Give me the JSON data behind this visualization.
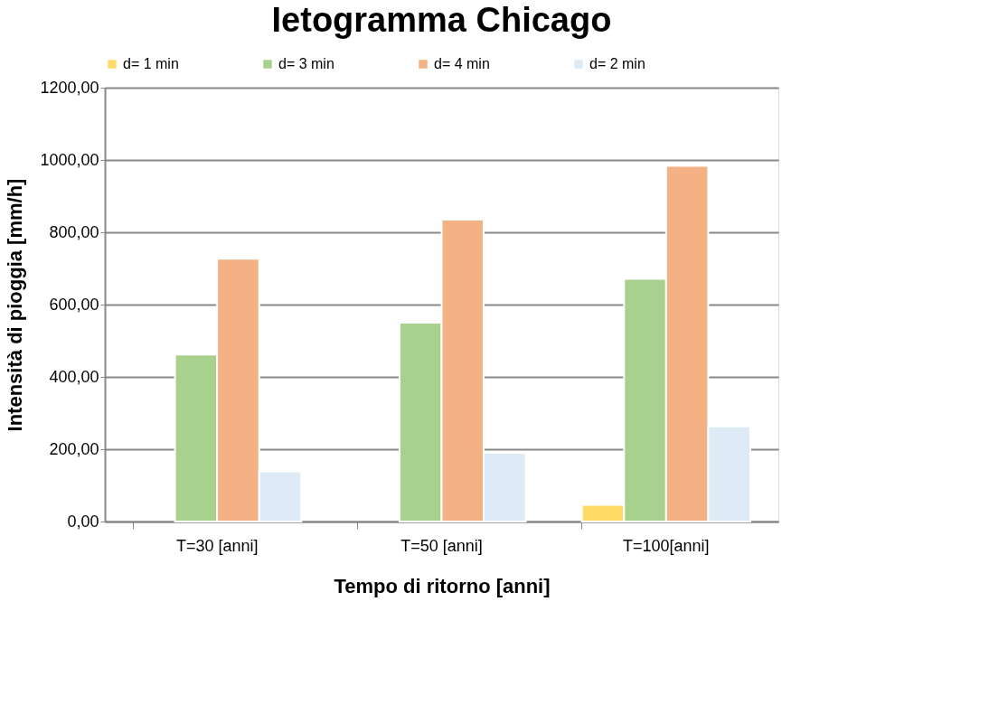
{
  "chart_data": {
    "type": "bar",
    "title": "Ietogramma Chicago",
    "xlabel": "Tempo di ritorno [anni]",
    "ylabel": "Intensità di pioggia [mm/h]",
    "categories": [
      "T=30 [anni]",
      "T=50 [anni]",
      "T=100[anni]"
    ],
    "series": [
      {
        "name": "d= 1 min",
        "color": "#ffd966",
        "values": [
          null,
          null,
          46
        ]
      },
      {
        "name": "d= 3 min",
        "color": "#a9d18e",
        "values": [
          462,
          550,
          671
        ]
      },
      {
        "name": "d= 4 min",
        "color": "#f4b183",
        "values": [
          727,
          835,
          984
        ]
      },
      {
        "name": "d= 2 min",
        "color": "#deebf7",
        "values": [
          139,
          190,
          263
        ]
      }
    ],
    "ylim": [
      0,
      1200
    ],
    "yticks": [
      {
        "value": 0,
        "label": "0,00"
      },
      {
        "value": 200,
        "label": "200,00"
      },
      {
        "value": 400,
        "label": "400,00"
      },
      {
        "value": 600,
        "label": "600,00"
      },
      {
        "value": 800,
        "label": "800,00"
      },
      {
        "value": 1000,
        "label": "1000,00"
      },
      {
        "value": 1200,
        "label": "1200,00"
      }
    ],
    "grid": "y",
    "legend": "top"
  }
}
